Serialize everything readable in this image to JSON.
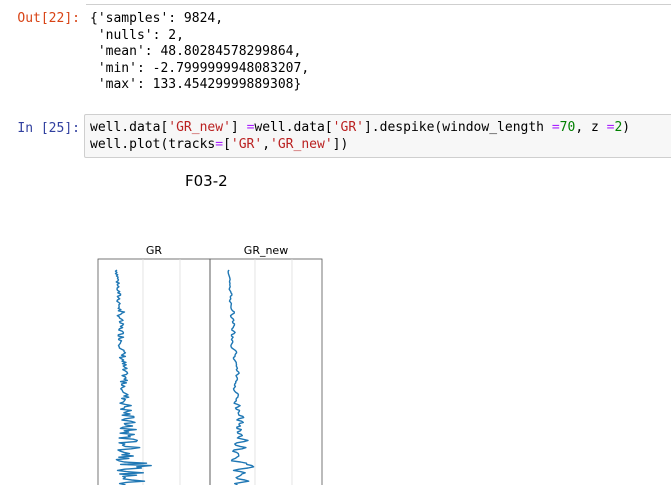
{
  "output_cell": {
    "prompt": "Out[22]:",
    "lines": [
      "{'samples': 9824,",
      " 'nulls': 2,",
      " 'mean': 48.80284578299864,",
      " 'min': -2.7999999948083207,",
      " 'max': 133.45429999889308}"
    ]
  },
  "input_cell": {
    "prompt": "In [25]:",
    "line1": {
      "a": "well.data[",
      "b": "'GR_new'",
      "c": "] ",
      "d": "=",
      "e": "well.data[",
      "f": "'GR'",
      "g": "].despike(window_length ",
      "h": "=",
      "i": "70",
      "j": ", z ",
      "k": "=",
      "l": "2",
      "m": ")"
    },
    "line2": {
      "a": "well.plot(tracks",
      "b": "=",
      "c": "[",
      "d": "'GR'",
      "e": ",",
      "f": "'GR_new'",
      "g": "])"
    }
  },
  "plot": {
    "title": "F03-2",
    "tracks": [
      {
        "name": "GR"
      },
      {
        "name": "GR_new"
      }
    ],
    "line_color": "#1f77b4"
  },
  "chart_data": {
    "type": "line",
    "title": "F03-2",
    "series": [
      {
        "name": "GR"
      },
      {
        "name": "GR_new"
      }
    ],
    "xlim": [
      -2.8,
      133.45
    ],
    "grid": true
  }
}
